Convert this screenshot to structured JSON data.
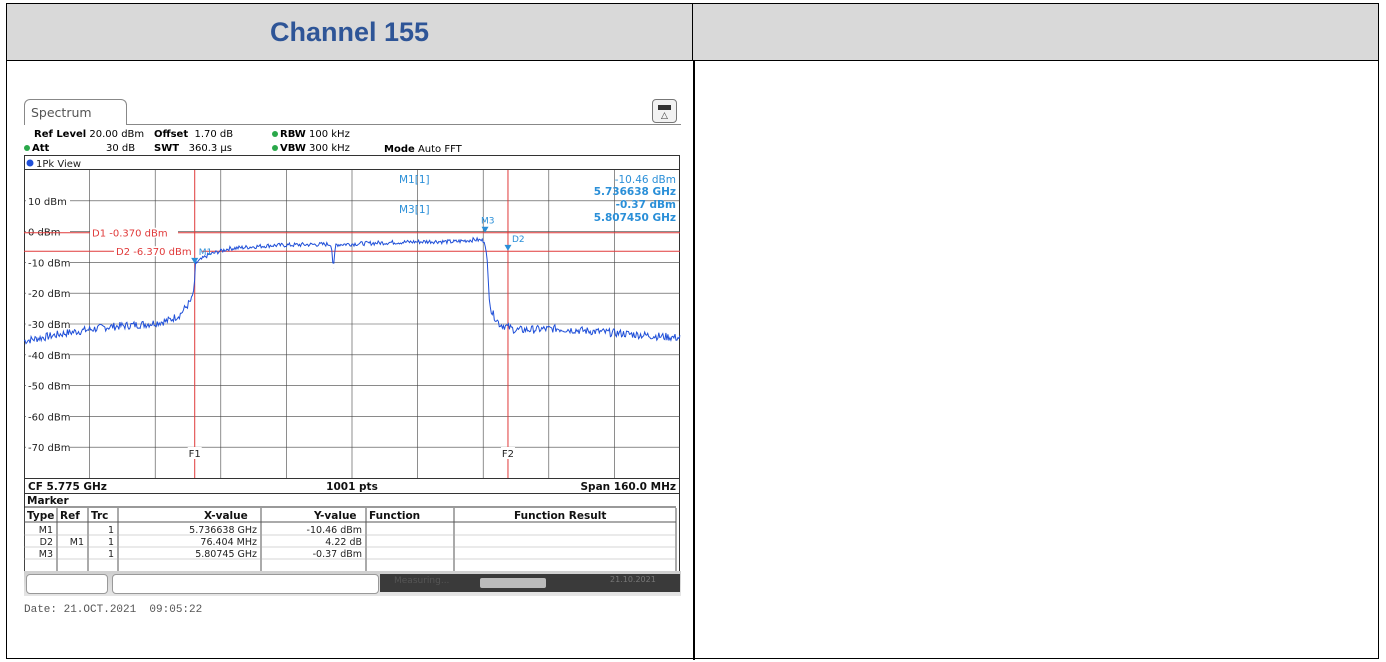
{
  "header": {
    "left_title": "Channel 155",
    "right_title": ""
  },
  "analyzer": {
    "tab_label": "Spectrum",
    "ref_level_label": "Ref Level",
    "ref_level_value": "20.00 dBm",
    "offset_label": "Offset",
    "offset_value": "1.70 dB",
    "rbw_label": "RBW",
    "rbw_value": "100 kHz",
    "att_label": "Att",
    "att_value": "30 dB",
    "swt_label": "SWT",
    "swt_value": "360.3 µs",
    "vbw_label": "VBW",
    "vbw_value": "300 kHz",
    "mode_label": "Mode",
    "mode_value": "Auto FFT",
    "trace_label": "1Pk View",
    "footer_left": "CF 5.775 GHz",
    "footer_mid": "1001 pts",
    "footer_right": "Span 160.0 MHz",
    "status_measuring": "Measuring...",
    "status_date": "21.10.2021",
    "date_stamp": "Date: 21.OCT.2021  09:05:22"
  },
  "marker_readout": {
    "m1_name": "M1[1]",
    "m1_level": "-10.46 dBm",
    "m1_freq": "5.736638 GHz",
    "m3_name": "M3[1]",
    "m3_level": "-0.37 dBm",
    "m3_freq": "5.807450 GHz"
  },
  "marker_table": {
    "title": "Marker",
    "headers": [
      "Type",
      "Ref",
      "Trc",
      "X-value",
      "Y-value",
      "Function",
      "Function Result"
    ],
    "rows": [
      [
        "M1",
        "",
        "1",
        "5.736638 GHz",
        "-10.46 dBm",
        "",
        ""
      ],
      [
        "D2",
        "M1",
        "1",
        "76.404 MHz",
        "4.22 dB",
        "",
        ""
      ],
      [
        "M3",
        "",
        "1",
        "5.80745 GHz",
        "-0.37 dBm",
        "",
        ""
      ]
    ]
  },
  "chart_data": {
    "type": "line",
    "title": "",
    "xlabel": "",
    "ylabel": "",
    "x_unit": "MHz offset from CF 5.775 GHz",
    "xlim": [
      -80,
      80
    ],
    "ylim": [
      -80,
      20
    ],
    "y_ticks": [
      10,
      0,
      -10,
      -20,
      -30,
      -40,
      -50,
      -60,
      -70
    ],
    "y_tick_labels": [
      "10 dBm",
      "0 dBm",
      "-10 dBm",
      "-20 dBm",
      "-30 dBm",
      "-40 dBm",
      "-50 dBm",
      "-60 dBm",
      "-70 dBm"
    ],
    "grid": true,
    "trace_color": "#1f4fd8",
    "series": [
      {
        "name": "1Pk View",
        "x": [
          -80,
          -70,
          -60,
          -50,
          -45,
          -42,
          -39,
          -38.4,
          -38.36,
          -35,
          -30,
          -20,
          -10,
          -5,
          -4.8,
          -4.5,
          -4,
          0,
          10,
          20,
          25,
          30,
          32.4,
          33,
          33.4,
          34,
          36,
          40,
          50,
          60,
          70,
          80
        ],
        "y": [
          -35.5,
          -33,
          -31,
          -30,
          -29,
          -27,
          -22,
          -17,
          -10.46,
          -7.5,
          -5.5,
          -4.5,
          -4.2,
          -4.1,
          -8.5,
          -12,
          -4.2,
          -4.0,
          -3.5,
          -3.2,
          -3.3,
          -2.6,
          -3,
          -10,
          -20,
          -26,
          -30,
          -32,
          -31.5,
          -32.5,
          -33.5,
          -34.5
        ]
      }
    ],
    "display_lines": [
      {
        "name": "D1",
        "label": "D1 -0.370 dBm",
        "y": -0.37
      },
      {
        "name": "D2",
        "label": "D2 -6.370 dBm",
        "y": -6.37
      }
    ],
    "frequency_lines": [
      {
        "name": "F1",
        "x": -38.362
      },
      {
        "name": "F2",
        "x": 38.042
      }
    ],
    "markers": [
      {
        "name": "M1",
        "x": -38.362,
        "y": -10.46
      },
      {
        "name": "D2",
        "x": 38.042,
        "y": -6.24
      },
      {
        "name": "M3",
        "x": 32.45,
        "y": -0.37
      }
    ]
  }
}
